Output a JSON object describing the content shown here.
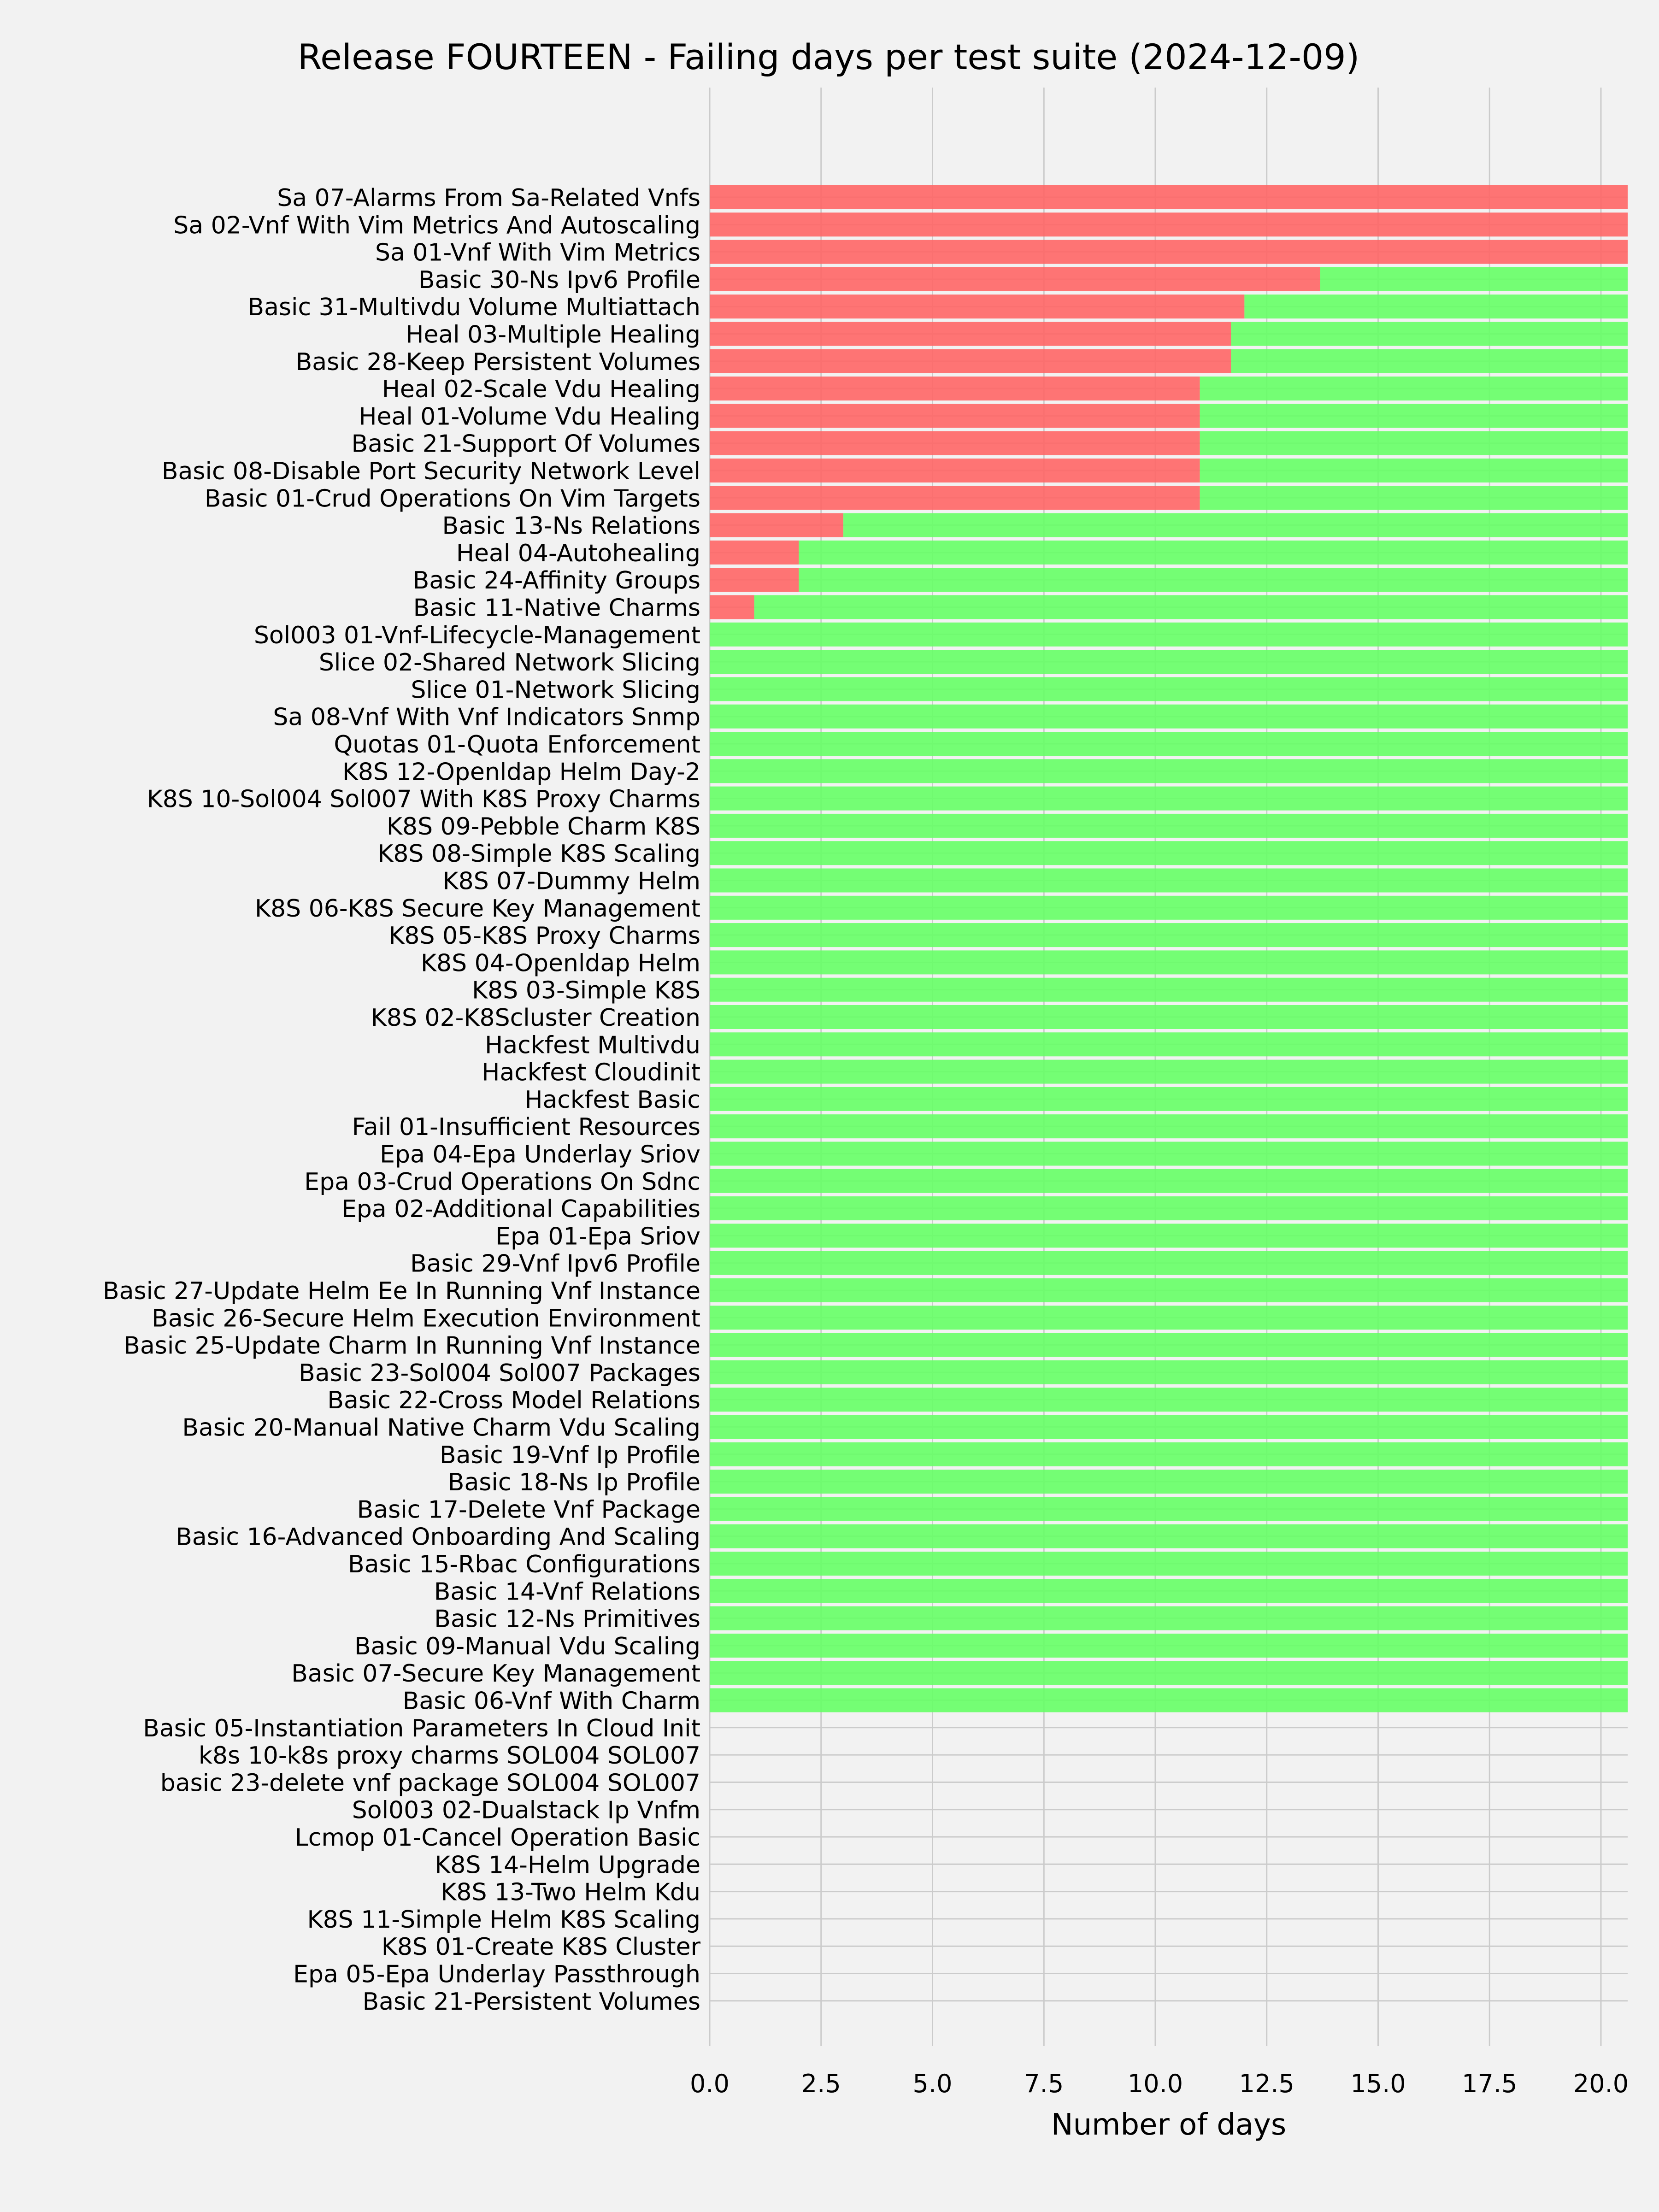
{
  "chart_data": {
    "type": "bar",
    "orientation": "horizontal",
    "stacked": true,
    "title": "Release FOURTEEN - Failing days per test suite (2024-12-09)",
    "xlabel": "Number of days",
    "ylabel": "",
    "xlim": [
      0,
      20.6
    ],
    "xticks": [
      "0.0",
      "2.5",
      "5.0",
      "7.5",
      "10.0",
      "12.5",
      "15.0",
      "17.5",
      "20.0"
    ],
    "xtick_values": [
      0,
      2.5,
      5,
      7.5,
      10,
      12.5,
      15,
      17.5,
      20
    ],
    "grid": true,
    "categories": [
      "Sa 07-Alarms From Sa-Related Vnfs",
      "Sa 02-Vnf With Vim Metrics And Autoscaling",
      "Sa 01-Vnf With Vim Metrics",
      "Basic 30-Ns Ipv6 Profile",
      "Basic 31-Multivdu Volume Multiattach",
      "Heal 03-Multiple Healing",
      "Basic 28-Keep Persistent Volumes",
      "Heal 02-Scale Vdu Healing",
      "Heal 01-Volume Vdu Healing",
      "Basic 21-Support Of Volumes",
      "Basic 08-Disable Port Security Network Level",
      "Basic 01-Crud Operations On Vim Targets",
      "Basic 13-Ns Relations",
      "Heal 04-Autohealing",
      "Basic 24-Affinity Groups",
      "Basic 11-Native Charms",
      "Sol003 01-Vnf-Lifecycle-Management",
      "Slice 02-Shared Network Slicing",
      "Slice 01-Network Slicing",
      "Sa 08-Vnf With Vnf Indicators Snmp",
      "Quotas 01-Quota Enforcement",
      "K8S 12-Openldap Helm Day-2",
      "K8S 10-Sol004 Sol007 With K8S Proxy Charms",
      "K8S 09-Pebble Charm K8S",
      "K8S 08-Simple K8S Scaling",
      "K8S 07-Dummy Helm",
      "K8S 06-K8S Secure Key Management",
      "K8S 05-K8S Proxy Charms",
      "K8S 04-Openldap Helm",
      "K8S 03-Simple K8S",
      "K8S 02-K8Scluster Creation",
      "Hackfest Multivdu",
      "Hackfest Cloudinit",
      "Hackfest Basic",
      "Fail 01-Insufficient Resources",
      "Epa 04-Epa Underlay Sriov",
      "Epa 03-Crud Operations On Sdnc",
      "Epa 02-Additional Capabilities",
      "Epa 01-Epa Sriov",
      "Basic 29-Vnf Ipv6 Profile",
      "Basic 27-Update Helm Ee In Running Vnf Instance",
      "Basic 26-Secure Helm Execution Environment",
      "Basic 25-Update Charm In Running Vnf Instance",
      "Basic 23-Sol004 Sol007 Packages",
      "Basic 22-Cross Model Relations",
      "Basic 20-Manual Native Charm Vdu Scaling",
      "Basic 19-Vnf Ip Profile",
      "Basic 18-Ns Ip Profile",
      "Basic 17-Delete Vnf Package",
      "Basic 16-Advanced Onboarding And Scaling",
      "Basic 15-Rbac Configurations",
      "Basic 14-Vnf Relations",
      "Basic 12-Ns Primitives",
      "Basic 09-Manual Vdu Scaling",
      "Basic 07-Secure Key Management",
      "Basic 06-Vnf With Charm",
      "Basic 05-Instantiation Parameters In Cloud Init",
      "k8s 10-k8s proxy charms SOL004 SOL007",
      "basic 23-delete vnf package SOL004 SOL007",
      "Sol003 02-Dualstack Ip Vnfm",
      "Lcmop 01-Cancel Operation Basic",
      "K8S 14-Helm Upgrade",
      "K8S 13-Two Helm Kdu",
      "K8S 11-Simple Helm K8S Scaling",
      "K8S 01-Create K8S Cluster",
      "Epa 05-Epa Underlay Passthrough",
      "Basic 21-Persistent Volumes"
    ],
    "series": [
      {
        "key": "failing",
        "color": "#ff6666",
        "values": [
          20.6,
          20.6,
          20.6,
          13.7,
          12,
          11.7,
          11.7,
          11,
          11,
          11,
          11,
          11,
          3,
          2,
          2,
          1,
          0,
          0,
          0,
          0,
          0,
          0,
          0,
          0,
          0,
          0,
          0,
          0,
          0,
          0,
          0,
          0,
          0,
          0,
          0,
          0,
          0,
          0,
          0,
          0,
          0,
          0,
          0,
          0,
          0,
          0,
          0,
          0,
          0,
          0,
          0,
          0,
          0,
          0,
          0,
          0,
          0,
          0,
          0,
          0,
          0,
          0,
          0,
          0,
          0,
          0,
          0
        ]
      },
      {
        "key": "passing",
        "color": "#66ff66",
        "values": [
          0,
          0,
          0,
          6.9,
          8.6,
          8.9,
          8.9,
          9.6,
          9.6,
          9.6,
          9.6,
          9.6,
          17.6,
          18.6,
          18.6,
          19.6,
          20.6,
          20.6,
          20.6,
          20.6,
          20.6,
          20.6,
          20.6,
          20.6,
          20.6,
          20.6,
          20.6,
          20.6,
          20.6,
          20.6,
          20.6,
          20.6,
          20.6,
          20.6,
          20.6,
          20.6,
          20.6,
          20.6,
          20.6,
          20.6,
          20.6,
          20.6,
          20.6,
          20.6,
          20.6,
          20.6,
          20.6,
          20.6,
          20.6,
          20.6,
          20.6,
          20.6,
          20.6,
          20.6,
          20.6,
          20.6,
          0,
          0,
          0,
          0,
          0,
          0,
          0,
          0,
          0,
          0,
          0
        ]
      }
    ]
  }
}
